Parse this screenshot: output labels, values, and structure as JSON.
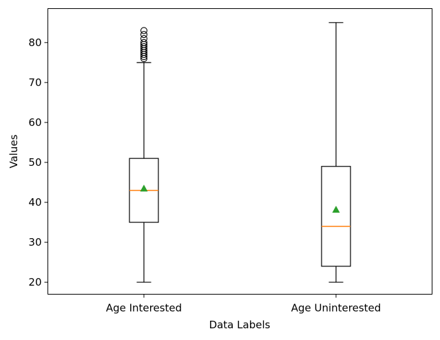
{
  "chart_data": {
    "type": "boxplot",
    "title": "",
    "xlabel": "Data Labels",
    "ylabel": "Values",
    "ylim": [
      17,
      88.5
    ],
    "yticks": [
      20,
      30,
      40,
      50,
      60,
      70,
      80
    ],
    "grid": false,
    "categories": [
      "Age Interested",
      "Age Uninterested"
    ],
    "boxes": [
      {
        "label": "Age Interested",
        "whisker_low": 20,
        "q1": 35,
        "median": 43,
        "q3": 51,
        "whisker_high": 75,
        "mean": 43.5,
        "outliers": [
          76,
          76.5,
          77,
          77.5,
          78,
          78.5,
          79,
          79.5,
          80,
          81,
          82,
          83
        ]
      },
      {
        "label": "Age Uninterested",
        "whisker_low": 20,
        "q1": 24,
        "median": 34,
        "q3": 49,
        "whisker_high": 85,
        "mean": 38.2,
        "outliers": []
      }
    ],
    "colors": {
      "box": "#000000",
      "median": "#ff7f0e",
      "mean": "#2ca02c",
      "outlier": "#000000"
    }
  }
}
